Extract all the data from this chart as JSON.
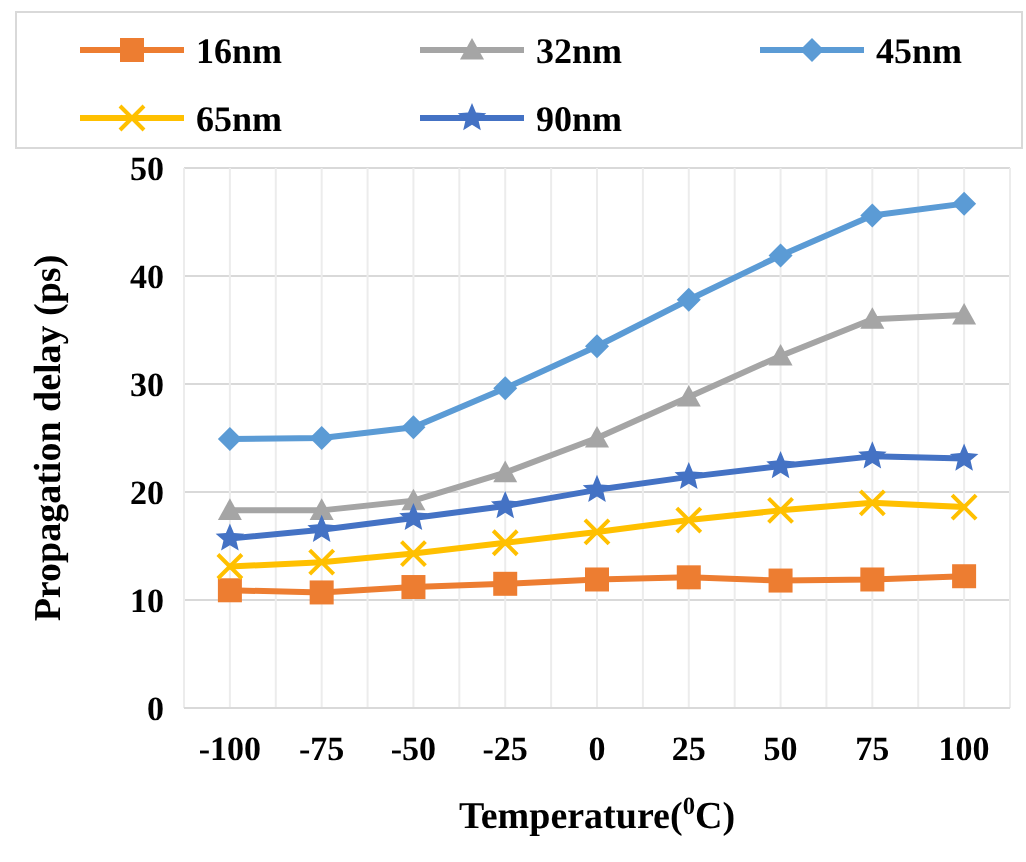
{
  "chart_data": {
    "type": "line",
    "xlabel": "Temperature($^{0}$C)",
    "ylabel": "Propagation delay (ps)",
    "categories": [
      "-100",
      "-75",
      "-50",
      "-25",
      "0",
      "25",
      "50",
      "75",
      "100"
    ],
    "ylim": [
      0,
      50
    ],
    "yticks": [
      0,
      10,
      20,
      30,
      40,
      50
    ],
    "grid": true,
    "legend": "top",
    "line_style": "solid",
    "series": [
      {
        "name": "16nm",
        "color": "#ed7d31",
        "marker": "square",
        "values": [
          10.9,
          10.7,
          11.2,
          11.5,
          11.9,
          12.1,
          11.8,
          11.9,
          12.2
        ]
      },
      {
        "name": "32nm",
        "color": "#a5a5a5",
        "marker": "triangle",
        "values": [
          18.3,
          18.3,
          19.2,
          21.8,
          25.0,
          28.8,
          32.6,
          36.0,
          36.4
        ]
      },
      {
        "name": "45nm",
        "color": "#5b9bd5",
        "marker": "diamond",
        "values": [
          24.9,
          25.0,
          26.0,
          29.6,
          33.5,
          37.8,
          41.9,
          45.6,
          46.7
        ]
      },
      {
        "name": "65nm",
        "color": "#ffc000",
        "marker": "cross",
        "values": [
          13.1,
          13.5,
          14.3,
          15.3,
          16.3,
          17.4,
          18.3,
          19.0,
          18.6
        ]
      },
      {
        "name": "90nm",
        "color": "#4472c4",
        "marker": "star",
        "values": [
          15.7,
          16.5,
          17.6,
          18.7,
          20.2,
          21.4,
          22.4,
          23.3,
          23.1
        ]
      }
    ]
  }
}
